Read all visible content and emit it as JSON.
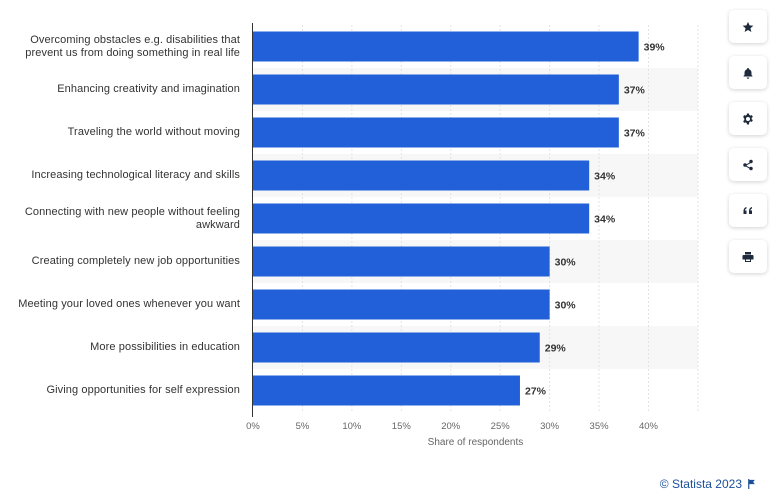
{
  "chart_data": {
    "type": "bar",
    "orientation": "horizontal",
    "categories": [
      "Overcoming obstacles e.g. disabilities that prevent us from doing something in real life",
      "Enhancing creativity and imagination",
      "Traveling the world without moving",
      "Increasing technological literacy and skills",
      "Connecting with new people without feeling awkward",
      "Creating completely new job opportunities",
      "Meeting your loved ones whenever you want",
      "More possibilities in education",
      "Giving opportunities for self expression"
    ],
    "values": [
      39,
      37,
      37,
      34,
      34,
      30,
      30,
      29,
      27
    ],
    "value_labels": [
      "39%",
      "37%",
      "37%",
      "34%",
      "34%",
      "30%",
      "30%",
      "29%",
      "27%"
    ],
    "xlabel": "Share of respondents",
    "ylabel": "",
    "xlim": [
      0,
      45
    ],
    "xticks": [
      0,
      5,
      10,
      15,
      20,
      25,
      30,
      35,
      40
    ],
    "xtick_labels": [
      "0%",
      "5%",
      "10%",
      "15%",
      "20%",
      "25%",
      "30%",
      "35%",
      "40%"
    ],
    "grid": true,
    "bar_color": "#2160d9",
    "stripe_color": "#f7f7f7"
  },
  "toolbar": {
    "buttons": [
      {
        "name": "favorite-button",
        "icon": "star-icon"
      },
      {
        "name": "notification-button",
        "icon": "bell-icon"
      },
      {
        "name": "settings-button",
        "icon": "gear-icon"
      },
      {
        "name": "share-button",
        "icon": "share-icon"
      },
      {
        "name": "cite-button",
        "icon": "quote-icon"
      },
      {
        "name": "print-button",
        "icon": "printer-icon"
      }
    ]
  },
  "credit": {
    "text": "© Statista 2023",
    "icon": "flag-icon"
  }
}
